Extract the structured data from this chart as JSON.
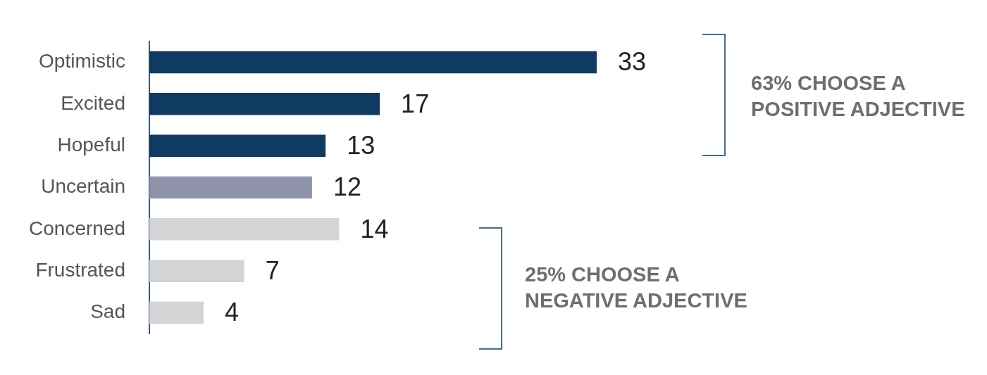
{
  "chart_data": {
    "type": "bar",
    "orientation": "horizontal",
    "categories": [
      "Optimistic",
      "Excited",
      "Hopeful",
      "Uncertain",
      "Concerned",
      "Frustrated",
      "Sad"
    ],
    "values": [
      33,
      17,
      13,
      12,
      14,
      7,
      4
    ],
    "colors": [
      "#0f3a62",
      "#0f3a62",
      "#0f3a62",
      "#8e93ab",
      "#d3d4d6",
      "#d3d4d6",
      "#d3d4d6"
    ],
    "data_labels": true,
    "legend": false,
    "annotations": [
      "63% CHOOSE A POSITIVE ADJECTIVE",
      "25% CHOOSE A NEGATIVE ADJECTIVE"
    ]
  }
}
